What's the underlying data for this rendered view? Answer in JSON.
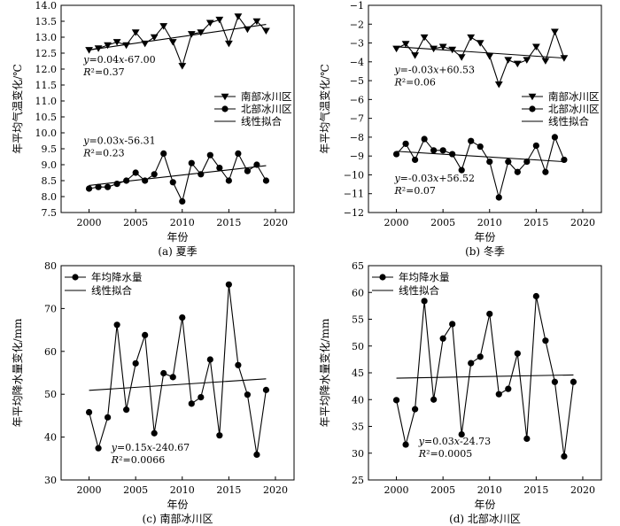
{
  "chart_data": [
    {
      "id": "a",
      "type": "line",
      "caption": "(a) 夏季",
      "xlabel": "年份",
      "ylabel": "年平均气温变化/℃",
      "xlim": [
        1997,
        2022
      ],
      "ylim": [
        7.5,
        14.0
      ],
      "xticks": [
        2000,
        2005,
        2010,
        2015,
        2020
      ],
      "yticks": [
        7.5,
        8.0,
        8.5,
        9.0,
        9.5,
        10.0,
        10.5,
        11.0,
        11.5,
        12.0,
        12.5,
        13.0,
        13.5,
        14.0
      ],
      "ytick_decimals": 1,
      "legend": {
        "position": "right-middle",
        "entries": [
          "南部冰川区",
          "北部冰川区",
          "线性拟合"
        ]
      },
      "series": [
        {
          "name": "南部冰川区",
          "marker": "triangle-down",
          "x": [
            2000,
            2001,
            2002,
            2003,
            2004,
            2005,
            2006,
            2007,
            2008,
            2009,
            2010,
            2011,
            2012,
            2013,
            2014,
            2015,
            2016,
            2017,
            2018,
            2019
          ],
          "y": [
            12.6,
            12.65,
            12.75,
            12.85,
            12.75,
            13.15,
            12.8,
            13.0,
            13.35,
            12.85,
            12.1,
            13.1,
            13.15,
            13.45,
            13.55,
            12.8,
            13.65,
            13.25,
            13.5,
            13.2
          ],
          "fit": {
            "slope": 0.04,
            "intercept": -67.0,
            "x0": 2000,
            "x1": 2019,
            "y0": 12.6,
            "y1": 13.4
          }
        },
        {
          "name": "北部冰川区",
          "marker": "circle",
          "x": [
            2000,
            2001,
            2002,
            2003,
            2004,
            2005,
            2006,
            2007,
            2008,
            2009,
            2010,
            2011,
            2012,
            2013,
            2014,
            2015,
            2016,
            2017,
            2018,
            2019
          ],
          "y": [
            8.25,
            8.3,
            8.3,
            8.4,
            8.5,
            8.75,
            8.5,
            8.7,
            9.35,
            8.45,
            7.85,
            9.05,
            8.7,
            9.3,
            8.9,
            8.5,
            9.35,
            8.8,
            9.0,
            8.5
          ],
          "fit": {
            "slope": 0.03,
            "intercept": -56.31,
            "x0": 2000,
            "x1": 2019,
            "y0": 8.35,
            "y1": 8.97
          }
        }
      ],
      "annotations": [
        {
          "eq": "y=0.04x-67.00",
          "r2": "R²=0.37",
          "at_x": 1999.4,
          "at_y": 12.2
        },
        {
          "eq": "y=0.03x-56.31",
          "r2": "R²=0.23",
          "at_x": 1999.4,
          "at_y": 9.65
        }
      ]
    },
    {
      "id": "b",
      "type": "line",
      "caption": "(b) 冬季",
      "xlabel": "年份",
      "ylabel": "年平均气温变化/℃",
      "xlim": [
        1997,
        2022
      ],
      "ylim": [
        -12,
        -1
      ],
      "xticks": [
        2000,
        2005,
        2010,
        2015,
        2020
      ],
      "yticks": [
        -12,
        -11,
        -10,
        -9,
        -8,
        -7,
        -6,
        -5,
        -4,
        -3,
        -2,
        -1
      ],
      "ytick_decimals": 0,
      "legend": {
        "position": "right-middle",
        "entries": [
          "南部冰川区",
          "北部冰川区",
          "线性拟合"
        ]
      },
      "series": [
        {
          "name": "南部冰川区",
          "marker": "triangle-down",
          "x": [
            2000,
            2001,
            2002,
            2003,
            2004,
            2005,
            2006,
            2007,
            2008,
            2009,
            2010,
            2011,
            2012,
            2013,
            2014,
            2015,
            2016,
            2017,
            2018
          ],
          "y": [
            -3.3,
            -3.05,
            -3.65,
            -2.7,
            -3.3,
            -3.2,
            -3.35,
            -3.75,
            -2.7,
            -3.0,
            -3.7,
            -5.2,
            -3.9,
            -4.1,
            -3.9,
            -3.2,
            -3.95,
            -2.4,
            -3.8
          ],
          "fit": {
            "slope": -0.03,
            "intercept": 60.53,
            "x0": 2000,
            "x1": 2018,
            "y0": -3.2,
            "y1": -3.8
          }
        },
        {
          "name": "北部冰川区",
          "marker": "circle",
          "x": [
            2000,
            2001,
            2002,
            2003,
            2004,
            2005,
            2006,
            2007,
            2008,
            2009,
            2010,
            2011,
            2012,
            2013,
            2014,
            2015,
            2016,
            2017,
            2018
          ],
          "y": [
            -8.9,
            -8.35,
            -9.2,
            -8.1,
            -8.7,
            -8.7,
            -8.9,
            -9.75,
            -8.2,
            -8.5,
            -9.3,
            -11.2,
            -9.3,
            -9.85,
            -9.3,
            -8.45,
            -9.85,
            -8.0,
            -9.2
          ],
          "fit": {
            "slope": -0.03,
            "intercept": 56.52,
            "x0": 2000,
            "x1": 2018,
            "y0": -8.75,
            "y1": -9.3
          }
        }
      ],
      "annotations": [
        {
          "eq": "y=-0.03x+60.53",
          "r2": "R²=0.06",
          "at_x": 1999.8,
          "at_y": -4.6
        },
        {
          "eq": "y=-0.03x+56.52",
          "r2": "R²=0.07",
          "at_x": 1999.8,
          "at_y": -10.35
        }
      ]
    },
    {
      "id": "c",
      "type": "line",
      "caption": "(c) 南部冰川区",
      "xlabel": "年份",
      "ylabel": "年平均降水量变化/mm",
      "xlim": [
        1997,
        2022
      ],
      "ylim": [
        30,
        80
      ],
      "xticks": [
        2000,
        2005,
        2010,
        2015,
        2020
      ],
      "yticks": [
        30,
        40,
        50,
        60,
        70,
        80
      ],
      "ytick_decimals": 0,
      "legend": {
        "position": "top-left",
        "entries": [
          "年均降水量",
          "线性拟合"
        ]
      },
      "series": [
        {
          "name": "年均降水量",
          "marker": "circle",
          "x": [
            2000,
            2001,
            2002,
            2003,
            2004,
            2005,
            2006,
            2007,
            2008,
            2009,
            2010,
            2011,
            2012,
            2013,
            2014,
            2015,
            2016,
            2017,
            2018,
            2019
          ],
          "y": [
            45.8,
            37.4,
            44.6,
            66.2,
            46.4,
            57.2,
            63.8,
            40.9,
            54.9,
            54.0,
            67.9,
            47.8,
            49.3,
            58.1,
            40.4,
            75.6,
            56.8,
            49.9,
            35.9,
            51.0
          ],
          "fit": {
            "slope": 0.15,
            "intercept": -240.67,
            "x0": 2000,
            "x1": 2019,
            "y0": 50.9,
            "y1": 53.6
          }
        }
      ],
      "annotations": [
        {
          "eq": "y=0.15x-240.67",
          "r2": "R²=0.0066",
          "at_x": 2002.4,
          "at_y": 36.8
        }
      ]
    },
    {
      "id": "d",
      "type": "line",
      "caption": "(d) 北部冰川区",
      "xlabel": "年份",
      "ylabel": "年平均降水量变化/mm",
      "xlim": [
        1997,
        2022
      ],
      "ylim": [
        25,
        65
      ],
      "xticks": [
        2000,
        2005,
        2010,
        2015,
        2020
      ],
      "yticks": [
        25,
        30,
        35,
        40,
        45,
        50,
        55,
        60,
        65
      ],
      "ytick_decimals": 0,
      "legend": {
        "position": "top-left",
        "entries": [
          "年均降水量",
          "线性拟合"
        ]
      },
      "series": [
        {
          "name": "年均降水量",
          "marker": "circle",
          "x": [
            2000,
            2001,
            2002,
            2003,
            2004,
            2005,
            2006,
            2007,
            2008,
            2009,
            2010,
            2011,
            2012,
            2013,
            2014,
            2015,
            2016,
            2017,
            2018,
            2019
          ],
          "y": [
            39.9,
            31.6,
            38.2,
            58.4,
            40.0,
            51.4,
            54.1,
            33.5,
            46.8,
            48.0,
            56.0,
            41.0,
            42.0,
            48.6,
            32.7,
            59.3,
            51.0,
            43.3,
            29.4,
            43.3
          ],
          "fit": {
            "slope": 0.03,
            "intercept": -24.73,
            "x0": 2000,
            "x1": 2019,
            "y0": 44.0,
            "y1": 44.6
          }
        }
      ],
      "annotations": [
        {
          "eq": "y=0.03x-24.73",
          "r2": "R²=0.0005",
          "at_x": 2002.4,
          "at_y": 31.6
        }
      ]
    }
  ]
}
